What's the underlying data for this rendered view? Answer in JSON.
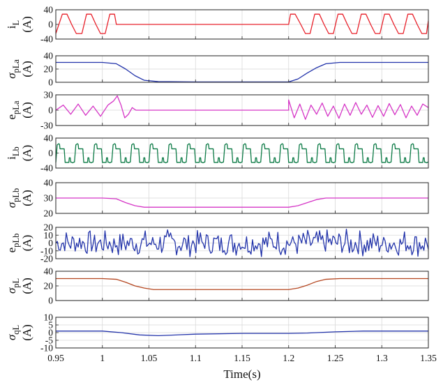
{
  "chart_data": {
    "type": "line",
    "x_label": "Time(s)",
    "x_range": [
      0.95,
      1.35
    ],
    "x_ticks": [
      "0.95",
      "1",
      "1.05",
      "1.1",
      "1.15",
      "1.2",
      "1.25",
      "1.3",
      "1.35"
    ],
    "grid": true,
    "subplots": [
      {
        "id": "iL",
        "label_main": "i",
        "label_greek": false,
        "label_sub": "L",
        "unit": "(A)",
        "ylim": [
          -40,
          40
        ],
        "yticks": [
          "40",
          "0",
          "-40"
        ],
        "color": "#e8202a",
        "x": [
          0.95,
          0.957,
          0.962,
          0.967,
          0.972,
          0.978,
          0.983,
          0.988,
          0.993,
          0.998,
          1.003,
          1.008,
          1.013,
          1.015,
          1.2,
          1.202,
          1.207,
          1.213,
          1.218,
          1.223,
          1.228,
          1.233,
          1.238,
          1.243,
          1.248,
          1.253,
          1.258,
          1.263,
          1.268,
          1.273,
          1.278,
          1.283,
          1.288,
          1.293,
          1.298,
          1.303,
          1.308,
          1.313,
          1.318,
          1.323,
          1.328,
          1.333,
          1.338,
          1.343,
          1.348,
          1.35
        ],
        "y": [
          -25,
          28,
          28,
          0,
          -25,
          -25,
          28,
          28,
          0,
          -25,
          -25,
          28,
          28,
          0,
          0,
          28,
          28,
          0,
          -25,
          -25,
          28,
          28,
          0,
          -25,
          -25,
          28,
          28,
          0,
          -25,
          -25,
          28,
          28,
          0,
          -25,
          -25,
          28,
          28,
          0,
          -25,
          -25,
          28,
          28,
          0,
          -25,
          -25,
          10
        ]
      },
      {
        "id": "sigma_pLa",
        "label_main": "σ",
        "label_greek": true,
        "label_sub": "pLa",
        "unit": "(A)",
        "ylim": [
          0,
          40
        ],
        "yticks": [
          "40",
          "20",
          "0"
        ],
        "color": "#2233aa",
        "x": [
          0.95,
          1.0,
          1.015,
          1.025,
          1.035,
          1.045,
          1.06,
          1.1,
          1.2,
          1.21,
          1.22,
          1.23,
          1.24,
          1.255,
          1.3,
          1.35
        ],
        "y": [
          30,
          30,
          28,
          20,
          10,
          3,
          1,
          0.5,
          0.5,
          5,
          14,
          22,
          28,
          30,
          30,
          30
        ]
      },
      {
        "id": "e_pLa",
        "label_main": "e",
        "label_greek": false,
        "label_sub": "pLa",
        "unit": "(A)",
        "ylim": [
          -30,
          30
        ],
        "yticks": [
          "30",
          "0",
          "-30"
        ],
        "color": "#d535c6",
        "x": [
          0.95,
          0.958,
          0.966,
          0.974,
          0.982,
          0.99,
          0.998,
          1.006,
          1.012,
          1.016,
          1.02,
          1.024,
          1.028,
          1.032,
          1.036,
          1.04,
          1.2,
          1.2,
          1.206,
          1.212,
          1.218,
          1.224,
          1.23,
          1.236,
          1.242,
          1.248,
          1.254,
          1.26,
          1.266,
          1.272,
          1.278,
          1.284,
          1.29,
          1.296,
          1.302,
          1.308,
          1.314,
          1.32,
          1.326,
          1.332,
          1.338,
          1.344,
          1.35
        ],
        "y": [
          0,
          10,
          -8,
          12,
          -10,
          8,
          -12,
          10,
          18,
          28,
          10,
          -15,
          -8,
          5,
          0,
          0,
          0,
          20,
          -15,
          12,
          -18,
          10,
          -8,
          14,
          -12,
          8,
          -16,
          12,
          -10,
          15,
          -8,
          10,
          -14,
          9,
          -12,
          13,
          -9,
          11,
          -15,
          8,
          -10,
          12,
          5
        ]
      },
      {
        "id": "iLb",
        "label_main": "i",
        "label_greek": false,
        "label_sub": "Lb",
        "unit": "(A)",
        "ylim": [
          -40,
          40
        ],
        "yticks": [
          "40",
          "0",
          "-40"
        ],
        "color": "#0b7a45",
        "period": 0.02,
        "amplitude": 25,
        "x": [
          0.95,
          1.35
        ],
        "y": [
          -25,
          25
        ]
      },
      {
        "id": "sigma_pLb",
        "label_main": "σ",
        "label_greek": true,
        "label_sub": "pLb",
        "unit": "(A)",
        "ylim": [
          20,
          40
        ],
        "yticks": [
          "40",
          "30",
          "20"
        ],
        "color": "#d535c6",
        "x": [
          0.95,
          1.0,
          1.015,
          1.025,
          1.035,
          1.045,
          1.1,
          1.2,
          1.21,
          1.22,
          1.23,
          1.24,
          1.255,
          1.3,
          1.35
        ],
        "y": [
          30,
          30,
          29.5,
          27,
          25,
          24,
          24,
          24,
          25,
          27,
          29,
          30,
          30,
          30,
          30
        ]
      },
      {
        "id": "e_pLb",
        "label_main": "e",
        "label_greek": false,
        "label_sub": "pLb",
        "unit": "(A)",
        "ylim": [
          -20,
          20
        ],
        "yticks": [
          "20",
          "10",
          "0",
          "-10",
          "-20"
        ],
        "color": "#2233aa",
        "x": [
          0.95,
          1.35
        ],
        "y": [
          -18,
          18
        ]
      },
      {
        "id": "sigma_pL",
        "label_main": "σ",
        "label_greek": true,
        "label_sub": "pL",
        "unit": "(A)",
        "ylim": [
          0,
          40
        ],
        "yticks": [
          "40",
          "20",
          "0"
        ],
        "color": "#b4451f",
        "x": [
          0.95,
          1.0,
          1.015,
          1.025,
          1.035,
          1.045,
          1.055,
          1.1,
          1.2,
          1.21,
          1.22,
          1.23,
          1.24,
          1.255,
          1.3,
          1.35
        ],
        "y": [
          30,
          30,
          29,
          25,
          20,
          17,
          15,
          15,
          15,
          17,
          21,
          26,
          29,
          30,
          30,
          30
        ]
      },
      {
        "id": "sigma_qL",
        "label_main": "σ",
        "label_greek": true,
        "label_sub": "qL",
        "unit": "(A)",
        "ylim": [
          -10,
          10
        ],
        "yticks": [
          "10",
          "5",
          "0",
          "-5",
          "-10"
        ],
        "color": "#2233aa",
        "x": [
          0.95,
          1.0,
          1.02,
          1.04,
          1.06,
          1.1,
          1.15,
          1.2,
          1.22,
          1.25,
          1.28,
          1.35
        ],
        "y": [
          1,
          1,
          0,
          -1.5,
          -2,
          -1,
          -0.5,
          -0.5,
          -0.3,
          0.5,
          1,
          1
        ]
      }
    ]
  }
}
